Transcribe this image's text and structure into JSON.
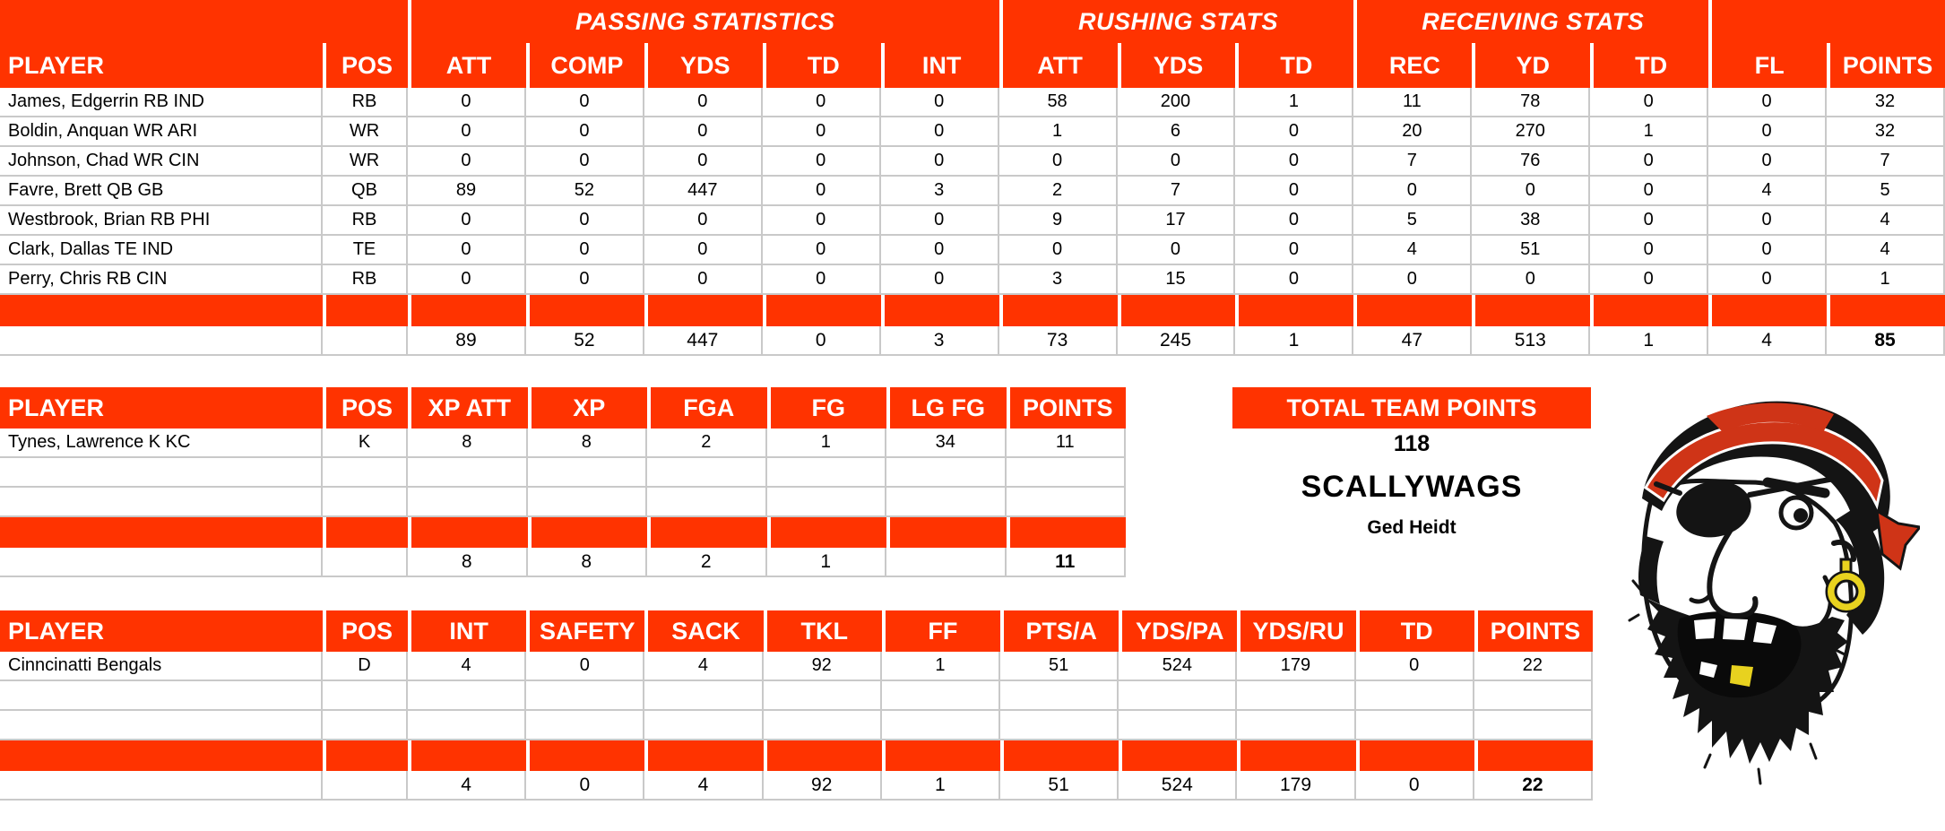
{
  "colors": {
    "accent": "#ff3300",
    "gridline": "#c9c9c9",
    "bandana_red": "#cf3417",
    "earring_gold": "#e8d21f"
  },
  "offense_table": {
    "group_headers": [
      {
        "label": "PASSING STATISTICS"
      },
      {
        "label": "RUSHING STATS"
      },
      {
        "label": "RECEIVING STATS"
      }
    ],
    "columns": [
      "PLAYER",
      "POS",
      "ATT",
      "COMP",
      "YDS",
      "TD",
      "INT",
      "ATT",
      "YDS",
      "TD",
      "REC",
      "YD",
      "TD",
      "FL",
      "POINTS"
    ],
    "rows": [
      [
        "James, Edgerrin RB IND",
        "RB",
        "0",
        "0",
        "0",
        "0",
        "0",
        "58",
        "200",
        "1",
        "11",
        "78",
        "0",
        "0",
        "32"
      ],
      [
        "Boldin, Anquan WR ARI",
        "WR",
        "0",
        "0",
        "0",
        "0",
        "0",
        "1",
        "6",
        "0",
        "20",
        "270",
        "1",
        "0",
        "32"
      ],
      [
        "Johnson, Chad WR CIN",
        "WR",
        "0",
        "0",
        "0",
        "0",
        "0",
        "0",
        "0",
        "0",
        "7",
        "76",
        "0",
        "0",
        "7"
      ],
      [
        "Favre, Brett QB GB",
        "QB",
        "89",
        "52",
        "447",
        "0",
        "3",
        "2",
        "7",
        "0",
        "0",
        "0",
        "0",
        "4",
        "5"
      ],
      [
        "Westbrook, Brian RB PHI",
        "RB",
        "0",
        "0",
        "0",
        "0",
        "0",
        "9",
        "17",
        "0",
        "5",
        "38",
        "0",
        "0",
        "4"
      ],
      [
        "Clark, Dallas TE IND",
        "TE",
        "0",
        "0",
        "0",
        "0",
        "0",
        "0",
        "0",
        "0",
        "4",
        "51",
        "0",
        "0",
        "4"
      ],
      [
        "Perry, Chris RB CIN",
        "RB",
        "0",
        "0",
        "0",
        "0",
        "0",
        "3",
        "15",
        "0",
        "0",
        "0",
        "0",
        "0",
        "1"
      ]
    ],
    "totals": [
      "",
      "",
      "89",
      "52",
      "447",
      "0",
      "3",
      "73",
      "245",
      "1",
      "47",
      "513",
      "1",
      "4",
      "85"
    ]
  },
  "kicking_table": {
    "columns": [
      "PLAYER",
      "POS",
      "XP ATT",
      "XP",
      "FGA",
      "FG",
      "LG FG",
      "POINTS"
    ],
    "rows": [
      [
        "Tynes, Lawrence K KC",
        "K",
        "8",
        "8",
        "2",
        "1",
        "34",
        "11"
      ]
    ],
    "totals": [
      "",
      "",
      "8",
      "8",
      "2",
      "1",
      "",
      "11"
    ]
  },
  "defense_table": {
    "columns": [
      "PLAYER",
      "POS",
      "INT",
      "SAFETY",
      "SACK",
      "TKL",
      "FF",
      "PTS/A",
      "YDS/PA",
      "YDS/RU",
      "TD",
      "POINTS"
    ],
    "rows": [
      [
        "Cinncinatti Bengals",
        "D",
        "4",
        "0",
        "4",
        "92",
        "1",
        "51",
        "524",
        "179",
        "0",
        "22"
      ]
    ],
    "totals": [
      "",
      "",
      "4",
      "0",
      "4",
      "92",
      "1",
      "51",
      "524",
      "179",
      "0",
      "22"
    ]
  },
  "team_summary": {
    "header": "TOTAL TEAM POINTS",
    "total_points": "118",
    "team_name": "SCALLYWAGS",
    "owner": "Ged Heidt"
  }
}
